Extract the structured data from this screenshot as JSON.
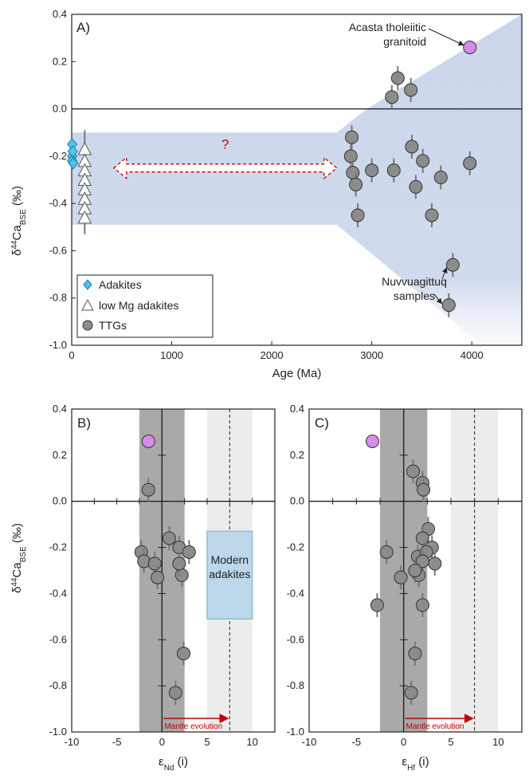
{
  "colors": {
    "band": "#c8d4ea",
    "adakite": "#4fc3e8",
    "ttg": "#8c8c8c",
    "acasta": "#d68ce8",
    "modern_box": "#bcd8ea",
    "arrow_red": "#c00000",
    "ttg_band_dark": "#a9a9a9",
    "mantle_band_light": "#ececec"
  },
  "shared": {
    "ylabel_main": "δ",
    "ylabel_sup": "44",
    "ylabel_tail": "Ca",
    "ylabel_sub": "BSE",
    "ylabel_unit": " (‰)"
  },
  "chart_data": [
    {
      "type": "scatter",
      "panel": "A)",
      "xlabel": "Age (Ma)",
      "xlim": [
        0,
        4500
      ],
      "ylim": [
        -1.0,
        0.4
      ],
      "xticks": [
        "0",
        "1000",
        "2000",
        "3000",
        "4000"
      ],
      "yticks": [
        "0.4",
        "0.2",
        "0.0",
        "-0.2",
        "-0.4",
        "-0.6",
        "-0.8",
        "-1.0"
      ],
      "question_mark": "?",
      "annotations": {
        "acasta": [
          "Acasta tholeiitic",
          "granitoid"
        ],
        "nuvvuagittuq": [
          "Nuvvuagittuq",
          "samples"
        ]
      },
      "legend": [
        "Adakites",
        "low Mg adakites",
        "TTGs"
      ],
      "series": [
        {
          "name": "Adakites",
          "marker": "diamond",
          "points": [
            [
              5,
              -0.15
            ],
            [
              5,
              -0.2
            ],
            [
              5,
              -0.22
            ],
            [
              10,
              -0.18
            ],
            [
              15,
              -0.23
            ]
          ]
        },
        {
          "name": "low Mg adakites",
          "marker": "triangle",
          "points": [
            [
              130,
              -0.17
            ],
            [
              130,
              -0.22
            ],
            [
              130,
              -0.26
            ],
            [
              130,
              -0.3
            ],
            [
              130,
              -0.34
            ],
            [
              130,
              -0.38
            ],
            [
              130,
              -0.42
            ],
            [
              130,
              -0.46
            ]
          ]
        },
        {
          "name": "TTGs",
          "marker": "circle",
          "points": [
            [
              3200,
              0.05
            ],
            [
              3260,
              0.13
            ],
            [
              3390,
              0.08
            ],
            [
              2800,
              -0.12
            ],
            [
              2790,
              -0.2
            ],
            [
              2810,
              -0.27
            ],
            [
              2840,
              -0.32
            ],
            [
              2860,
              -0.45
            ],
            [
              3000,
              -0.26
            ],
            [
              3220,
              -0.26
            ],
            [
              3400,
              -0.16
            ],
            [
              3440,
              -0.33
            ],
            [
              3510,
              -0.22
            ],
            [
              3600,
              -0.45
            ],
            [
              3690,
              -0.29
            ],
            [
              3980,
              -0.23
            ],
            [
              3810,
              -0.66
            ],
            [
              3770,
              -0.83
            ]
          ]
        },
        {
          "name": "Acasta",
          "marker": "circle-purple",
          "points": [
            [
              3980,
              0.26
            ]
          ]
        }
      ]
    },
    {
      "type": "scatter",
      "panel": "B)",
      "xlabel_main": "ε",
      "xlabel_sub": "Nd",
      "xlabel_tail": "  (i)",
      "xlim": [
        -10,
        12.5
      ],
      "ylim": [
        -1.0,
        0.4
      ],
      "xticks": [
        "-10",
        "-5",
        "0",
        "5",
        "10"
      ],
      "yticks": [
        "0.4",
        "0.2",
        "0.0",
        "-0.2",
        "-0.4",
        "-0.6",
        "-0.8",
        "-1.0"
      ],
      "box_label": [
        "Modern",
        "adakites"
      ],
      "arrow_label": "Mantle evolution",
      "points": [
        [
          -1.5,
          0.05
        ],
        [
          -2.3,
          -0.22
        ],
        [
          -2.0,
          -0.26
        ],
        [
          -0.8,
          -0.27
        ],
        [
          -0.5,
          -0.33
        ],
        [
          0.8,
          -0.16
        ],
        [
          1.9,
          -0.2
        ],
        [
          2.2,
          -0.32
        ],
        [
          3.0,
          -0.22
        ],
        [
          1.9,
          -0.27
        ],
        [
          2.4,
          -0.66
        ],
        [
          1.5,
          -0.83
        ]
      ],
      "acasta": [
        -1.5,
        0.26
      ]
    },
    {
      "type": "scatter",
      "panel": "C)",
      "xlabel_main": "ε",
      "xlabel_sub": "Hf",
      "xlabel_tail": " (i)",
      "xlim": [
        -10,
        12.5
      ],
      "ylim": [
        -1.0,
        0.4
      ],
      "xticks": [
        "-10",
        "-5",
        "0",
        "5",
        "10"
      ],
      "yticks": [
        "0.4",
        "0.2",
        "0.0",
        "-0.2",
        "-0.4",
        "-0.6",
        "-0.8",
        "-1.0"
      ],
      "arrow_label": "Mantle evolution",
      "points": [
        [
          1.0,
          0.13
        ],
        [
          2.0,
          0.08
        ],
        [
          2.1,
          0.05
        ],
        [
          2.6,
          -0.12
        ],
        [
          2.0,
          -0.16
        ],
        [
          3.0,
          -0.2
        ],
        [
          1.5,
          -0.24
        ],
        [
          2.4,
          -0.22
        ],
        [
          3.3,
          -0.27
        ],
        [
          2.0,
          -0.26
        ],
        [
          1.6,
          -0.32
        ],
        [
          -1.8,
          -0.22
        ],
        [
          -0.3,
          -0.33
        ],
        [
          1.2,
          -0.3
        ],
        [
          2.0,
          -0.45
        ],
        [
          -2.8,
          -0.45
        ],
        [
          1.2,
          -0.66
        ],
        [
          0.8,
          -0.83
        ]
      ],
      "acasta": [
        -3.3,
        0.26
      ]
    }
  ]
}
